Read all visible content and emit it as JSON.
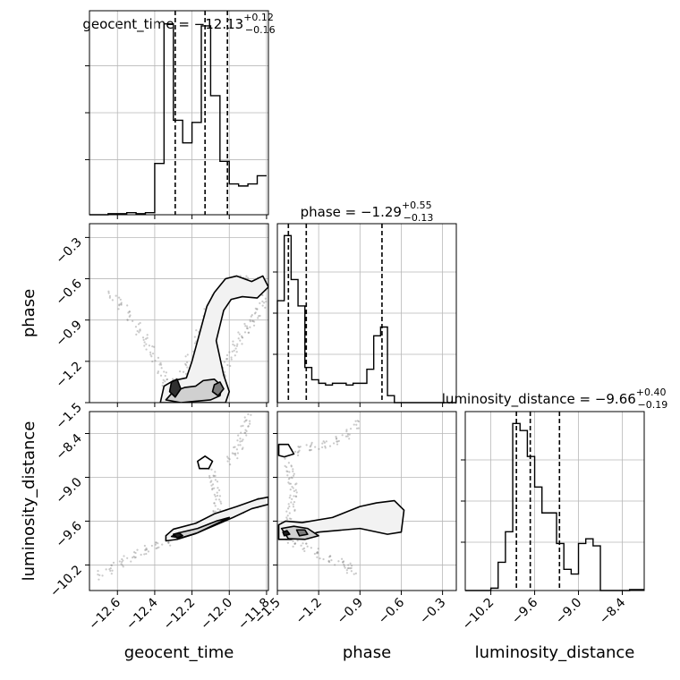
{
  "chart_data": {
    "type": "corner",
    "parameters": [
      "geocent_time",
      "phase",
      "luminosity_distance"
    ],
    "titles": {
      "geocent_time": {
        "prefix": "geocent_time = ",
        "median": "−12.13",
        "plus": "+0.12",
        "minus": "−0.16"
      },
      "phase": {
        "prefix": "phase = ",
        "median": "−1.29",
        "plus": "+0.55",
        "minus": "−0.13"
      },
      "luminosity_distance": {
        "prefix": "luminosity_distance = ",
        "median": "−9.66",
        "plus": "+0.40",
        "minus": "−0.19"
      }
    },
    "axis_labels": {
      "geocent_time": "geocent_time",
      "phase": "phase",
      "luminosity_distance": "luminosity_distance"
    },
    "ranges": {
      "geocent_time": [
        -12.75,
        -11.79
      ],
      "phase": [
        -1.5,
        -0.2
      ],
      "luminosity_distance": [
        -10.55,
        -8.1
      ]
    },
    "ticks": {
      "geocent_time": [
        {
          "v": -12.6,
          "t": "−12.6"
        },
        {
          "v": -12.4,
          "t": "−12.4"
        },
        {
          "v": -12.2,
          "t": "−12.2"
        },
        {
          "v": -12.0,
          "t": "−12.0"
        },
        {
          "v": -11.8,
          "t": "−11.8"
        }
      ],
      "phase_x": [
        {
          "v": -1.5,
          "t": "−1.5"
        },
        {
          "v": -1.2,
          "t": "−1.2"
        },
        {
          "v": -0.9,
          "t": "−0.9"
        },
        {
          "v": -0.6,
          "t": "−0.6"
        },
        {
          "v": -0.3,
          "t": "−0.3"
        }
      ],
      "phase_y": [
        {
          "v": -1.5,
          "t": "−1.5"
        },
        {
          "v": -1.2,
          "t": "−1.2"
        },
        {
          "v": -0.9,
          "t": "−0.9"
        },
        {
          "v": -0.6,
          "t": "−0.6"
        },
        {
          "v": -0.3,
          "t": "−0.3"
        }
      ],
      "luminosity_distance": [
        {
          "v": -10.2,
          "t": "−10.2"
        },
        {
          "v": -9.6,
          "t": "−9.6"
        },
        {
          "v": -9.0,
          "t": "−9.0"
        },
        {
          "v": -8.4,
          "t": "−8.4"
        }
      ]
    },
    "quantiles": {
      "geocent_time": [
        -12.29,
        -12.13,
        -12.01
      ],
      "phase": [
        -1.42,
        -1.29,
        -0.74
      ],
      "luminosity_distance": [
        -9.85,
        -9.66,
        -9.26
      ]
    },
    "histograms": {
      "geocent_time": {
        "edges": [
          -12.75,
          -12.7,
          -12.65,
          -12.6,
          -12.55,
          -12.5,
          -12.45,
          -12.4,
          -12.35,
          -12.3,
          -12.25,
          -12.2,
          -12.15,
          -12.1,
          -12.05,
          -12.0,
          -11.95,
          -11.9,
          -11.85,
          -11.8
        ],
        "counts": [
          0,
          0,
          0.5,
          0.5,
          1,
          0.5,
          1,
          25,
          93,
          46,
          35,
          45,
          92,
          58,
          26,
          15,
          14,
          15,
          19
        ]
      },
      "phase": {
        "edges": [
          -1.5,
          -1.45,
          -1.4,
          -1.35,
          -1.3,
          -1.25,
          -1.2,
          -1.15,
          -1.1,
          -1.05,
          -1.0,
          -0.95,
          -0.9,
          -0.85,
          -0.8,
          -0.75,
          -0.7,
          -0.65,
          -0.6,
          -0.55
        ],
        "counts": [
          58,
          95,
          70,
          55,
          20,
          13,
          11,
          10,
          11,
          11,
          10,
          11,
          11,
          19,
          38,
          43,
          4,
          0,
          0,
          0
        ],
        "range_end": -0.2
      },
      "luminosity_distance": {
        "edges": [
          -10.55,
          -10.4,
          -10.3,
          -10.2,
          -10.1,
          -10.0,
          -9.9,
          -9.8,
          -9.7,
          -9.6,
          -9.5,
          -9.4,
          -9.3,
          -9.2,
          -9.1,
          -9.0,
          -8.9,
          -8.8,
          -8.7,
          -8.6,
          -8.5,
          -8.3,
          -8.1
        ],
        "counts": [
          0,
          0,
          0,
          1,
          12,
          25,
          71,
          68,
          57,
          44,
          33,
          33,
          20,
          9,
          7,
          20,
          22,
          19,
          0,
          0,
          0,
          0.4
        ]
      }
    },
    "contours": {
      "phase_vs_geocent_time": [
        {
          "level": 1,
          "fill": "#f2f2f2",
          "pts": [
            [
              -12.37,
              -1.5
            ],
            [
              -12.35,
              -1.38
            ],
            [
              -12.3,
              -1.34
            ],
            [
              -12.23,
              -1.32
            ],
            [
              -12.2,
              -1.2
            ],
            [
              -12.15,
              -0.95
            ],
            [
              -12.12,
              -0.8
            ],
            [
              -12.08,
              -0.7
            ],
            [
              -12.02,
              -0.6
            ],
            [
              -11.96,
              -0.58
            ],
            [
              -11.88,
              -0.62
            ],
            [
              -11.82,
              -0.58
            ],
            [
              -11.79,
              -0.66
            ],
            [
              -11.85,
              -0.74
            ],
            [
              -11.93,
              -0.73
            ],
            [
              -11.99,
              -0.75
            ],
            [
              -12.03,
              -0.83
            ],
            [
              -12.07,
              -1.05
            ],
            [
              -12.03,
              -1.3
            ],
            [
              -12.0,
              -1.42
            ],
            [
              -12.02,
              -1.5
            ]
          ]
        },
        {
          "level": 2,
          "fill": "#d0d0d0",
          "pts": [
            [
              -12.34,
              -1.48
            ],
            [
              -12.3,
              -1.42
            ],
            [
              -12.24,
              -1.39
            ],
            [
              -12.18,
              -1.38
            ],
            [
              -12.14,
              -1.34
            ],
            [
              -12.08,
              -1.33
            ],
            [
              -12.04,
              -1.38
            ],
            [
              -12.05,
              -1.45
            ],
            [
              -12.1,
              -1.48
            ],
            [
              -12.18,
              -1.49
            ],
            [
              -12.26,
              -1.5
            ]
          ]
        },
        {
          "level": 3,
          "fill": "#7a7a7a",
          "pts": [
            [
              -12.08,
              -1.37
            ],
            [
              -12.05,
              -1.35
            ],
            [
              -12.03,
              -1.4
            ],
            [
              -12.06,
              -1.45
            ],
            [
              -12.09,
              -1.42
            ]
          ]
        },
        {
          "level": 3,
          "fill": "#303030",
          "pts": [
            [
              -12.31,
              -1.35
            ],
            [
              -12.28,
              -1.33
            ],
            [
              -12.26,
              -1.4
            ],
            [
              -12.29,
              -1.46
            ],
            [
              -12.32,
              -1.42
            ]
          ]
        }
      ],
      "luminosity_distance_vs_geocent_time": [
        {
          "level": 1,
          "fill": "#f2f2f2",
          "pts": [
            [
              -12.34,
              -9.8
            ],
            [
              -12.3,
              -9.71
            ],
            [
              -12.18,
              -9.63
            ],
            [
              -12.08,
              -9.5
            ],
            [
              -11.96,
              -9.4
            ],
            [
              -11.85,
              -9.3
            ],
            [
              -11.79,
              -9.27
            ],
            [
              -11.79,
              -9.37
            ],
            [
              -11.88,
              -9.43
            ],
            [
              -11.98,
              -9.55
            ],
            [
              -12.08,
              -9.66
            ],
            [
              -12.18,
              -9.77
            ],
            [
              -12.28,
              -9.85
            ],
            [
              -12.34,
              -9.87
            ]
          ]
        },
        {
          "level": 2,
          "fill": "#d0d0d0",
          "pts": [
            [
              -12.31,
              -9.81
            ],
            [
              -12.27,
              -9.76
            ],
            [
              -12.17,
              -9.7
            ],
            [
              -12.07,
              -9.6
            ],
            [
              -12.0,
              -9.55
            ],
            [
              -12.08,
              -9.65
            ],
            [
              -12.17,
              -9.76
            ],
            [
              -12.26,
              -9.83
            ]
          ]
        },
        {
          "level": 3,
          "fill": "#202020",
          "pts": [
            [
              -12.3,
              -9.78
            ],
            [
              -12.27,
              -9.76
            ],
            [
              -12.25,
              -9.8
            ],
            [
              -12.28,
              -9.83
            ]
          ]
        },
        {
          "level": 1,
          "fill": "#ffffff",
          "pts": [
            [
              -12.17,
              -8.78
            ],
            [
              -12.13,
              -8.71
            ],
            [
              -12.09,
              -8.78
            ],
            [
              -12.11,
              -8.88
            ],
            [
              -12.16,
              -8.88
            ]
          ]
        }
      ],
      "luminosity_distance_vs_phase": [
        {
          "level": 1,
          "fill": "#f2f2f2",
          "pts": [
            [
              -1.49,
              -9.65
            ],
            [
              -1.44,
              -9.6
            ],
            [
              -1.32,
              -9.62
            ],
            [
              -1.1,
              -9.55
            ],
            [
              -0.9,
              -9.4
            ],
            [
              -0.78,
              -9.35
            ],
            [
              -0.65,
              -9.32
            ],
            [
              -0.58,
              -9.45
            ],
            [
              -0.6,
              -9.75
            ],
            [
              -0.7,
              -9.78
            ],
            [
              -0.9,
              -9.7
            ],
            [
              -1.2,
              -9.75
            ],
            [
              -1.4,
              -9.85
            ],
            [
              -1.49,
              -9.85
            ]
          ]
        },
        {
          "level": 2,
          "fill": "#d0d0d0",
          "pts": [
            [
              -1.47,
              -9.7
            ],
            [
              -1.38,
              -9.67
            ],
            [
              -1.28,
              -9.7
            ],
            [
              -1.2,
              -9.8
            ],
            [
              -1.3,
              -9.85
            ],
            [
              -1.42,
              -9.84
            ]
          ]
        },
        {
          "level": 3,
          "fill": "#7a7a7a",
          "pts": [
            [
              -1.36,
              -9.72
            ],
            [
              -1.3,
              -9.72
            ],
            [
              -1.28,
              -9.78
            ],
            [
              -1.34,
              -9.8
            ]
          ]
        },
        {
          "level": 3,
          "fill": "#202020",
          "pts": [
            [
              -1.46,
              -9.75
            ],
            [
              -1.43,
              -9.73
            ],
            [
              -1.41,
              -9.78
            ],
            [
              -1.45,
              -9.8
            ]
          ]
        },
        {
          "level": 1,
          "fill": "#ffffff",
          "pts": [
            [
              -1.49,
              -8.55
            ],
            [
              -1.42,
              -8.55
            ],
            [
              -1.38,
              -8.68
            ],
            [
              -1.45,
              -8.72
            ],
            [
              -1.49,
              -8.7
            ]
          ]
        }
      ]
    },
    "sample_tracks": {
      "phase_vs_geocent_time": [
        [
          [
            -12.64,
            -0.7
          ],
          [
            -12.56,
            -0.82
          ],
          [
            -12.48,
            -0.98
          ],
          [
            -12.42,
            -1.12
          ],
          [
            -12.36,
            -1.28
          ],
          [
            -12.32,
            -1.42
          ]
        ],
        [
          [
            -12.05,
            -1.32
          ],
          [
            -12.0,
            -1.18
          ],
          [
            -11.95,
            -1.05
          ],
          [
            -11.9,
            -0.95
          ],
          [
            -11.85,
            -0.85
          ],
          [
            -11.8,
            -0.72
          ]
        ],
        [
          [
            -12.3,
            -1.38
          ],
          [
            -12.2,
            -1.15
          ],
          [
            -12.12,
            -0.85
          ],
          [
            -12.05,
            -0.68
          ],
          [
            -11.95,
            -0.6
          ],
          [
            -11.85,
            -0.62
          ]
        ]
      ],
      "luminosity_distance_vs_geocent_time": [
        [
          [
            -12.7,
            -10.35
          ],
          [
            -12.6,
            -10.2
          ],
          [
            -12.5,
            -10.05
          ],
          [
            -12.4,
            -9.95
          ],
          [
            -12.3,
            -9.85
          ]
        ],
        [
          [
            -12.08,
            -9.6
          ],
          [
            -12.06,
            -9.35
          ],
          [
            -12.08,
            -9.1
          ],
          [
            -12.1,
            -8.9
          ]
        ],
        [
          [
            -12.0,
            -8.78
          ],
          [
            -11.95,
            -8.6
          ],
          [
            -11.92,
            -8.35
          ],
          [
            -11.89,
            -8.15
          ]
        ],
        [
          [
            -12.32,
            -9.8
          ],
          [
            -12.2,
            -9.7
          ],
          [
            -12.05,
            -9.57
          ],
          [
            -11.9,
            -9.4
          ],
          [
            -11.8,
            -9.3
          ]
        ]
      ],
      "luminosity_distance_vs_phase": [
        [
          [
            -1.45,
            -9.7
          ],
          [
            -1.4,
            -9.45
          ],
          [
            -1.38,
            -9.2
          ],
          [
            -1.4,
            -9.0
          ],
          [
            -1.42,
            -8.8
          ]
        ],
        [
          [
            -1.42,
            -9.85
          ],
          [
            -1.3,
            -9.95
          ],
          [
            -1.15,
            -10.1
          ],
          [
            -1.0,
            -10.2
          ],
          [
            -0.95,
            -10.3
          ]
        ],
        [
          [
            -1.45,
            -8.7
          ],
          [
            -1.3,
            -8.6
          ],
          [
            -1.15,
            -8.55
          ],
          [
            -1.0,
            -8.45
          ],
          [
            -0.9,
            -8.2
          ]
        ]
      ]
    },
    "grid": true
  }
}
